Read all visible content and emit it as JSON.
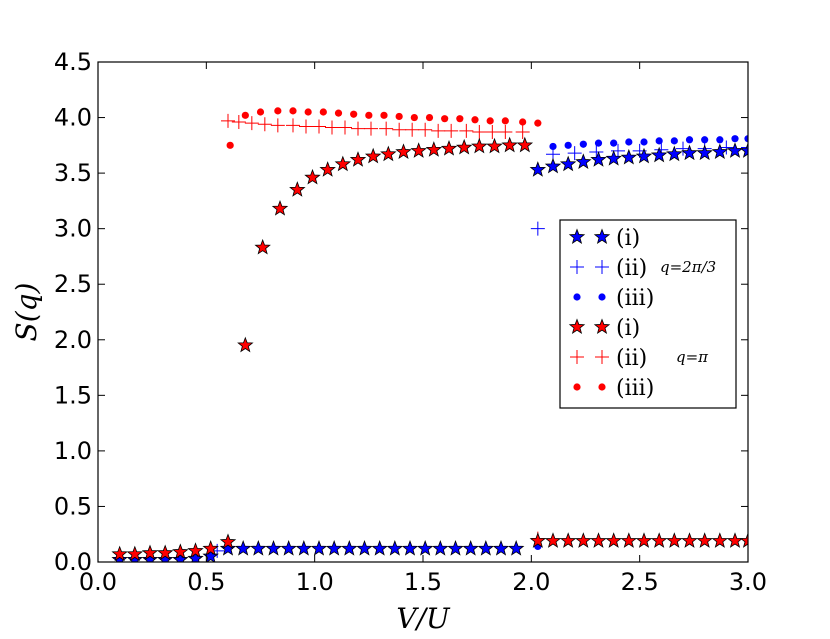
{
  "chart_data": {
    "type": "scatter",
    "title": "",
    "xlabel": "V/U",
    "ylabel": "S(q)",
    "xlim": [
      0.0,
      3.0
    ],
    "ylim": [
      0.0,
      4.5
    ],
    "xticks": [
      "0.0",
      "0.5",
      "1.0",
      "1.5",
      "2.0",
      "2.5",
      "3.0"
    ],
    "yticks": [
      "0.0",
      "0.5",
      "1.0",
      "1.5",
      "2.0",
      "2.5",
      "3.0",
      "3.5",
      "4.0",
      "4.5"
    ],
    "legend_position": "center-right",
    "legend_groups": [
      {
        "label": "q=2π/3",
        "series": [
          0,
          1,
          2
        ]
      },
      {
        "label": "q=π",
        "series": [
          3,
          4,
          5
        ]
      }
    ],
    "series": [
      {
        "name": "(i)",
        "group": "q=2π/3",
        "marker": "star",
        "color": "#0000ff",
        "points": [
          [
            0.1,
            0.02
          ],
          [
            0.17,
            0.02
          ],
          [
            0.24,
            0.02
          ],
          [
            0.31,
            0.02
          ],
          [
            0.38,
            0.02
          ],
          [
            0.45,
            0.03
          ],
          [
            0.52,
            0.05
          ],
          [
            0.6,
            0.12
          ],
          [
            0.67,
            0.12
          ],
          [
            0.74,
            0.12
          ],
          [
            0.81,
            0.12
          ],
          [
            0.88,
            0.12
          ],
          [
            0.95,
            0.12
          ],
          [
            1.02,
            0.12
          ],
          [
            1.09,
            0.12
          ],
          [
            1.16,
            0.12
          ],
          [
            1.23,
            0.12
          ],
          [
            1.3,
            0.12
          ],
          [
            1.37,
            0.12
          ],
          [
            1.44,
            0.12
          ],
          [
            1.51,
            0.12
          ],
          [
            1.58,
            0.12
          ],
          [
            1.65,
            0.12
          ],
          [
            1.72,
            0.12
          ],
          [
            1.79,
            0.12
          ],
          [
            1.86,
            0.12
          ],
          [
            1.93,
            0.12
          ],
          [
            2.03,
            3.53
          ],
          [
            2.1,
            3.56
          ],
          [
            2.17,
            3.58
          ],
          [
            2.24,
            3.6
          ],
          [
            2.31,
            3.62
          ],
          [
            2.38,
            3.63
          ],
          [
            2.45,
            3.64
          ],
          [
            2.52,
            3.65
          ],
          [
            2.59,
            3.66
          ],
          [
            2.66,
            3.67
          ],
          [
            2.73,
            3.68
          ],
          [
            2.8,
            3.68
          ],
          [
            2.87,
            3.69
          ],
          [
            2.94,
            3.7
          ],
          [
            3.0,
            3.7
          ]
        ]
      },
      {
        "name": "(ii)",
        "group": "q=2π/3",
        "marker": "plus",
        "color": "#0000ff",
        "points": [
          [
            0.55,
            0.1
          ],
          [
            2.03,
            3.0
          ],
          [
            2.1,
            3.67
          ],
          [
            2.2,
            3.68
          ],
          [
            2.3,
            3.69
          ],
          [
            2.4,
            3.7
          ],
          [
            2.5,
            3.7
          ],
          [
            2.6,
            3.71
          ],
          [
            2.7,
            3.72
          ],
          [
            2.8,
            3.72
          ],
          [
            2.9,
            3.73
          ],
          [
            3.0,
            3.73
          ]
        ]
      },
      {
        "name": "(iii)",
        "group": "q=2π/3",
        "marker": "dot",
        "color": "#0000ff",
        "points": [
          [
            2.03,
            0.14
          ],
          [
            2.1,
            3.74
          ],
          [
            2.17,
            3.75
          ],
          [
            2.24,
            3.76
          ],
          [
            2.31,
            3.77
          ],
          [
            2.38,
            3.77
          ],
          [
            2.45,
            3.78
          ],
          [
            2.52,
            3.78
          ],
          [
            2.59,
            3.79
          ],
          [
            2.66,
            3.79
          ],
          [
            2.73,
            3.8
          ],
          [
            2.8,
            3.8
          ],
          [
            2.87,
            3.8
          ],
          [
            2.94,
            3.81
          ],
          [
            3.0,
            3.81
          ]
        ]
      },
      {
        "name": "(i)",
        "group": "q=π",
        "marker": "star",
        "color": "#ff0000",
        "points": [
          [
            0.1,
            0.07
          ],
          [
            0.17,
            0.07
          ],
          [
            0.24,
            0.08
          ],
          [
            0.31,
            0.08
          ],
          [
            0.38,
            0.09
          ],
          [
            0.45,
            0.1
          ],
          [
            0.52,
            0.12
          ],
          [
            0.6,
            0.18
          ],
          [
            0.68,
            1.95
          ],
          [
            0.76,
            2.83
          ],
          [
            0.84,
            3.18
          ],
          [
            0.92,
            3.35
          ],
          [
            0.99,
            3.46
          ],
          [
            1.06,
            3.53
          ],
          [
            1.13,
            3.58
          ],
          [
            1.2,
            3.62
          ],
          [
            1.27,
            3.65
          ],
          [
            1.34,
            3.67
          ],
          [
            1.41,
            3.69
          ],
          [
            1.48,
            3.7
          ],
          [
            1.55,
            3.71
          ],
          [
            1.62,
            3.72
          ],
          [
            1.69,
            3.73
          ],
          [
            1.76,
            3.74
          ],
          [
            1.83,
            3.74
          ],
          [
            1.9,
            3.75
          ],
          [
            1.97,
            3.75
          ],
          [
            2.03,
            0.19
          ],
          [
            2.1,
            0.19
          ],
          [
            2.17,
            0.19
          ],
          [
            2.24,
            0.19
          ],
          [
            2.31,
            0.19
          ],
          [
            2.38,
            0.19
          ],
          [
            2.45,
            0.19
          ],
          [
            2.52,
            0.19
          ],
          [
            2.59,
            0.19
          ],
          [
            2.66,
            0.19
          ],
          [
            2.73,
            0.19
          ],
          [
            2.8,
            0.19
          ],
          [
            2.87,
            0.19
          ],
          [
            2.94,
            0.19
          ],
          [
            3.0,
            0.19
          ]
        ]
      },
      {
        "name": "(ii)",
        "group": "q=π",
        "marker": "plus",
        "color": "#ff0000",
        "points": [
          [
            0.6,
            3.97
          ],
          [
            0.65,
            3.96
          ],
          [
            0.71,
            3.95
          ],
          [
            0.77,
            3.94
          ],
          [
            0.83,
            3.93
          ],
          [
            0.9,
            3.93
          ],
          [
            0.96,
            3.92
          ],
          [
            1.02,
            3.92
          ],
          [
            1.08,
            3.91
          ],
          [
            1.14,
            3.91
          ],
          [
            1.2,
            3.9
          ],
          [
            1.26,
            3.9
          ],
          [
            1.33,
            3.9
          ],
          [
            1.39,
            3.89
          ],
          [
            1.45,
            3.89
          ],
          [
            1.51,
            3.89
          ],
          [
            1.57,
            3.88
          ],
          [
            1.63,
            3.88
          ],
          [
            1.7,
            3.88
          ],
          [
            1.76,
            3.87
          ],
          [
            1.82,
            3.87
          ],
          [
            1.88,
            3.87
          ],
          [
            1.96,
            3.87
          ],
          [
            2.03,
            0.21
          ]
        ]
      },
      {
        "name": "(iii)",
        "group": "q=π",
        "marker": "dot",
        "color": "#ff0000",
        "points": [
          [
            0.61,
            3.75
          ],
          [
            0.68,
            4.02
          ],
          [
            0.75,
            4.05
          ],
          [
            0.83,
            4.06
          ],
          [
            0.9,
            4.06
          ],
          [
            0.97,
            4.05
          ],
          [
            1.04,
            4.05
          ],
          [
            1.11,
            4.04
          ],
          [
            1.18,
            4.03
          ],
          [
            1.25,
            4.02
          ],
          [
            1.32,
            4.02
          ],
          [
            1.39,
            4.01
          ],
          [
            1.46,
            4.0
          ],
          [
            1.53,
            4.0
          ],
          [
            1.6,
            3.99
          ],
          [
            1.67,
            3.99
          ],
          [
            1.74,
            3.98
          ],
          [
            1.81,
            3.97
          ],
          [
            1.88,
            3.97
          ],
          [
            1.96,
            3.96
          ],
          [
            2.03,
            3.95
          ]
        ]
      }
    ]
  }
}
